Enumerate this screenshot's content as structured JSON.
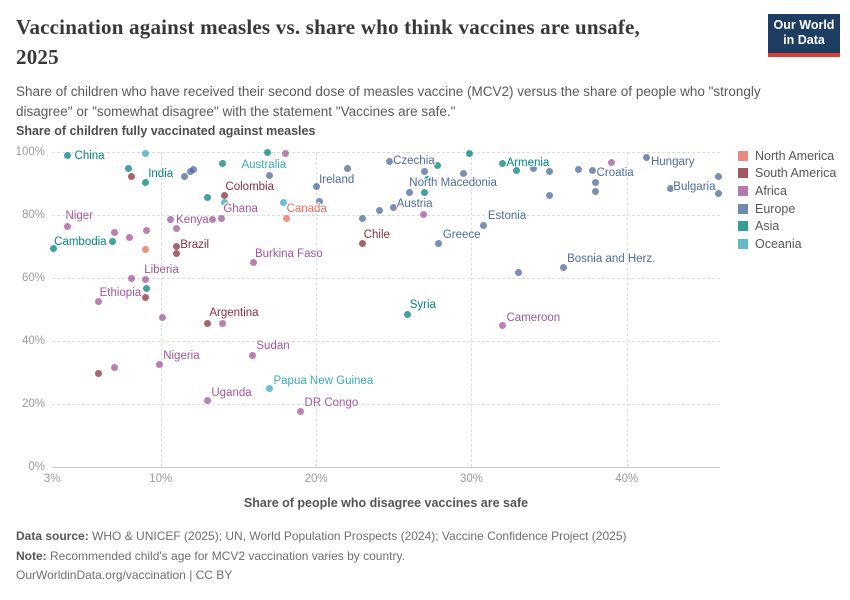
{
  "header": {
    "title_line1": "Vaccination against measles vs. share who think vaccines are unsafe,",
    "title_line2": "2025",
    "subtitle": "Share of children who have received their second dose of measles vaccine (MCV2) versus the share of people who \"strongly disagree\" or \"somewhat disagree\" with the statement \"Vaccines are safe.\"",
    "logo_line1": "Our World",
    "logo_line2": "in Data",
    "logo_bg": "#1d3d63",
    "logo_bar": "#dc3e32"
  },
  "axes": {
    "y_axis_title": "Share of children fully vaccinated against measles",
    "x_axis_title": "Share of people who disagree vaccines are safe"
  },
  "legend": {
    "items": [
      "North America",
      "South America",
      "Africa",
      "Europe",
      "Asia",
      "Oceania"
    ]
  },
  "footer": {
    "source_label": "Data source:",
    "source_text": " WHO & UNICEF (2025); UN, World Population Prospects (2024); Vaccine Confidence Project (2025)",
    "note_label": "Note:",
    "note_text": " Recommended child's age for MCV2 vaccination varies by country.",
    "url_text": "OurWorldinData.org/vaccination | CC BY"
  },
  "chart_data": {
    "type": "scatter",
    "title": "Vaccination against measles vs. share who think vaccines are unsafe, 2025",
    "xlabel": "Share of people who disagree vaccines are safe",
    "ylabel": "Share of children fully vaccinated against measles",
    "units": "%",
    "xlim": [
      3,
      46
    ],
    "ylim": [
      0,
      100
    ],
    "x_ticks": [
      3,
      10,
      20,
      30,
      40
    ],
    "y_ticks": [
      0,
      20,
      40,
      60,
      80,
      100
    ],
    "grid": true,
    "legend_position": "right",
    "series": [
      {
        "name": "North America",
        "color": "#e56e5a",
        "points": [
          {
            "x": 18.1,
            "y": 79,
            "label": "Canada",
            "ldx": 0,
            "ldy": -9
          },
          {
            "x": 9,
            "y": 69.2
          }
        ]
      },
      {
        "name": "South America",
        "color": "#883039",
        "points": [
          {
            "x": 14.1,
            "y": 86.3,
            "label": "Colombia",
            "ldx": 1,
            "ldy": -8
          },
          {
            "x": 11,
            "y": 70,
            "label": "Brazil",
            "ldx": 4,
            "ldy": -2
          },
          {
            "x": 23,
            "y": 70.8,
            "label": "Chile",
            "ldx": 1,
            "ldy": -9
          },
          {
            "x": 13,
            "y": 45.7,
            "label": "Argentina",
            "ldx": 2,
            "ldy": -10
          },
          {
            "x": 8.1,
            "y": 92.1
          },
          {
            "x": 11,
            "y": 67.9
          },
          {
            "x": 9,
            "y": 53.7
          },
          {
            "x": 6,
            "y": 29.8
          }
        ]
      },
      {
        "name": "Africa",
        "color": "#a2559c",
        "points": [
          {
            "x": 4,
            "y": 76.5,
            "label": "Niger",
            "ldx": -2,
            "ldy": -10
          },
          {
            "x": 10.6,
            "y": 78.5,
            "label": "Kenya",
            "ldx": 6,
            "ldy": 0
          },
          {
            "x": 13.9,
            "y": 79,
            "label": "Ghana",
            "ldx": 2,
            "ldy": -9
          },
          {
            "x": 9,
            "y": 59.5,
            "label": "Liberia",
            "ldx": -1,
            "ldy": -10
          },
          {
            "x": 6,
            "y": 52.5,
            "label": "Ethiopia",
            "ldx": 1,
            "ldy": -9
          },
          {
            "x": 16,
            "y": 65,
            "label": "Burkina Faso",
            "ldx": 1,
            "ldy": -8
          },
          {
            "x": 32,
            "y": 44.8,
            "label": "Cameroon",
            "ldx": 4,
            "ldy": -8
          },
          {
            "x": 15.9,
            "y": 35.5,
            "label": "Sudan",
            "ldx": 4,
            "ldy": -9
          },
          {
            "x": 9.9,
            "y": 32.5,
            "label": "Nigeria",
            "ldx": 4,
            "ldy": -9
          },
          {
            "x": 13,
            "y": 21,
            "label": "Uganda",
            "ldx": 4,
            "ldy": -8
          },
          {
            "x": 19,
            "y": 17.5,
            "label": "DR Congo",
            "ldx": 4,
            "ldy": -9
          },
          {
            "x": 18,
            "y": 99.5
          },
          {
            "x": 13.3,
            "y": 78.7
          },
          {
            "x": 11,
            "y": 75.6
          },
          {
            "x": 7,
            "y": 74.3
          },
          {
            "x": 8,
            "y": 72.7
          },
          {
            "x": 9.1,
            "y": 75.2
          },
          {
            "x": 8.1,
            "y": 59.7
          },
          {
            "x": 10.1,
            "y": 47.6
          },
          {
            "x": 14,
            "y": 45.7
          },
          {
            "x": 7,
            "y": 31.7
          },
          {
            "x": 26.9,
            "y": 80.3
          },
          {
            "x": 39,
            "y": 96.8
          }
        ]
      },
      {
        "name": "Europe",
        "color": "#4c6a9c",
        "points": [
          {
            "x": 20,
            "y": 89,
            "label": "Ireland",
            "ldx": 3,
            "ldy": -7
          },
          {
            "x": 24.7,
            "y": 97,
            "label": "Czechia",
            "ldx": 4,
            "ldy": 0
          },
          {
            "x": 25,
            "y": 82.5,
            "label": "Austria",
            "ldx": 3,
            "ldy": -3
          },
          {
            "x": 26,
            "y": 87.3,
            "label": "North Macedonia",
            "ldx": 0,
            "ldy": -9
          },
          {
            "x": 30.8,
            "y": 76.8,
            "label": "Estonia",
            "ldx": 4,
            "ldy": -9
          },
          {
            "x": 27.9,
            "y": 70.8,
            "label": "Greece",
            "ldx": 4,
            "ldy": -9
          },
          {
            "x": 37.8,
            "y": 94,
            "label": "Croatia",
            "ldx": 4,
            "ldy": 2
          },
          {
            "x": 41.3,
            "y": 98.4,
            "label": "Hungary",
            "ldx": 4,
            "ldy": 5
          },
          {
            "x": 42.8,
            "y": 88.5,
            "label": "Bulgaria",
            "ldx": 3,
            "ldy": -1
          },
          {
            "x": 35.9,
            "y": 63.2,
            "label": "Bosnia and Herz.",
            "ldx": 4,
            "ldy": -9
          },
          {
            "x": 11.5,
            "y": 92.1
          },
          {
            "x": 11.9,
            "y": 93.7
          },
          {
            "x": 12.1,
            "y": 94.6
          },
          {
            "x": 17,
            "y": 92.4
          },
          {
            "x": 20.2,
            "y": 84.4
          },
          {
            "x": 22,
            "y": 94.9
          },
          {
            "x": 23,
            "y": 79
          },
          {
            "x": 24.1,
            "y": 81.3
          },
          {
            "x": 27,
            "y": 93.7
          },
          {
            "x": 29.5,
            "y": 93.3
          },
          {
            "x": 34,
            "y": 94.9
          },
          {
            "x": 35,
            "y": 93.7
          },
          {
            "x": 35,
            "y": 86.3
          },
          {
            "x": 36.9,
            "y": 94.6
          },
          {
            "x": 38,
            "y": 90.2
          },
          {
            "x": 38,
            "y": 87.5
          },
          {
            "x": 45.9,
            "y": 92.1
          },
          {
            "x": 45.9,
            "y": 86.7
          },
          {
            "x": 33,
            "y": 61.9
          }
        ]
      },
      {
        "name": "Asia",
        "color": "#00847e",
        "points": [
          {
            "x": 4,
            "y": 99,
            "label": "China",
            "ldx": 7,
            "ldy": 1
          },
          {
            "x": 9,
            "y": 90.2,
            "label": "India",
            "ldx": 3,
            "ldy": -9
          },
          {
            "x": 6.9,
            "y": 71.5,
            "label": "Cambodia",
            "ldx": -6,
            "ldy": 0,
            "anchor": "right"
          },
          {
            "x": 25.9,
            "y": 48.5,
            "label": "Syria",
            "ldx": 2,
            "ldy": -9
          },
          {
            "x": 32,
            "y": 96.2,
            "label": "Armenia",
            "ldx": 4,
            "ldy": -1
          },
          {
            "x": 7.9,
            "y": 94.9
          },
          {
            "x": 13,
            "y": 85.7
          },
          {
            "x": 14,
            "y": 96.5
          },
          {
            "x": 16.9,
            "y": 99.7
          },
          {
            "x": 3.1,
            "y": 69.5
          },
          {
            "x": 9.1,
            "y": 56.8
          },
          {
            "x": 27,
            "y": 87
          },
          {
            "x": 27.8,
            "y": 95.6
          },
          {
            "x": 29.9,
            "y": 99.4
          },
          {
            "x": 27.2,
            "y": 91.4
          },
          {
            "x": 32.9,
            "y": 94
          }
        ]
      },
      {
        "name": "Oceania",
        "color": "#38aaba",
        "points": [
          {
            "x": 17.9,
            "y": 84,
            "label": "Australia",
            "ldx": -42,
            "ldy": -37
          },
          {
            "x": 17,
            "y": 24.8,
            "label": "Papua New Guinea",
            "ldx": 4,
            "ldy": -8
          },
          {
            "x": 9,
            "y": 99.4
          },
          {
            "x": 14.1,
            "y": 84.1
          }
        ]
      }
    ]
  }
}
